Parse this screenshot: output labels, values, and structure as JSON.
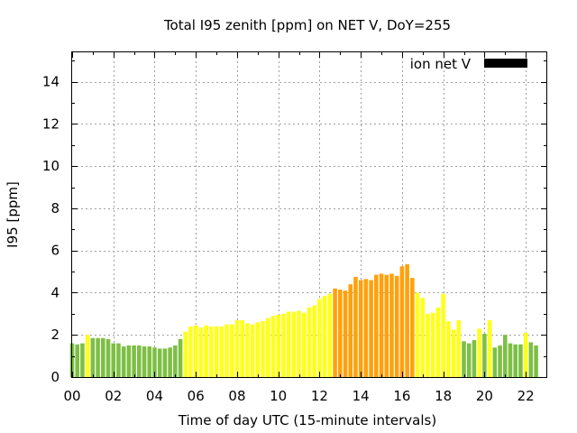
{
  "chart_data": {
    "type": "bar",
    "title": "Total I95 zenith [ppm] on NET V, DoY=255",
    "xlabel": "Time of day UTC (15-minute intervals)",
    "ylabel": "I95 [ppm]",
    "legend": {
      "label": "ion net V",
      "color": "#000000",
      "position": "top-right"
    },
    "xlim": [
      0,
      23
    ],
    "ylim": [
      0,
      15.4
    ],
    "grid": true,
    "x_tick_labels": [
      "00",
      "02",
      "04",
      "06",
      "08",
      "10",
      "12",
      "14",
      "16",
      "18",
      "20",
      "22"
    ],
    "y_ticks": [
      0,
      2,
      4,
      6,
      8,
      10,
      12,
      14
    ],
    "interval_hours": 0.25,
    "colors": {
      "low": "#7dbf45",
      "medium": "#ffff19",
      "high": "#ffa10c"
    },
    "values": [
      1.6,
      1.55,
      1.6,
      2.0,
      1.85,
      1.85,
      1.85,
      1.8,
      1.6,
      1.6,
      1.45,
      1.5,
      1.5,
      1.5,
      1.45,
      1.45,
      1.4,
      1.35,
      1.35,
      1.4,
      1.5,
      1.8,
      2.15,
      2.4,
      2.45,
      2.35,
      2.45,
      2.4,
      2.4,
      2.4,
      2.5,
      2.5,
      2.7,
      2.7,
      2.55,
      2.5,
      2.6,
      2.65,
      2.8,
      2.9,
      2.95,
      3.0,
      3.1,
      3.1,
      3.15,
      3.05,
      3.3,
      3.4,
      3.7,
      3.85,
      3.95,
      4.2,
      4.15,
      4.1,
      4.4,
      4.75,
      4.6,
      4.65,
      4.6,
      4.85,
      4.9,
      4.85,
      4.9,
      4.8,
      5.25,
      5.35,
      4.7,
      4.0,
      3.75,
      3.0,
      3.05,
      3.3,
      3.95,
      2.65,
      2.25,
      2.7,
      1.7,
      1.6,
      1.75,
      2.3,
      2.05,
      2.7,
      1.4,
      1.5,
      2.0,
      1.6,
      1.55,
      1.55,
      2.1,
      1.65,
      1.5
    ],
    "levels": [
      "low",
      "low",
      "low",
      "medium",
      "low",
      "low",
      "low",
      "low",
      "low",
      "low",
      "low",
      "low",
      "low",
      "low",
      "low",
      "low",
      "low",
      "low",
      "low",
      "low",
      "low",
      "low",
      "medium",
      "medium",
      "medium",
      "medium",
      "medium",
      "medium",
      "medium",
      "medium",
      "medium",
      "medium",
      "medium",
      "medium",
      "medium",
      "medium",
      "medium",
      "medium",
      "medium",
      "medium",
      "medium",
      "medium",
      "medium",
      "medium",
      "medium",
      "medium",
      "medium",
      "medium",
      "medium",
      "medium",
      "medium",
      "high",
      "high",
      "high",
      "high",
      "high",
      "high",
      "high",
      "high",
      "high",
      "high",
      "high",
      "high",
      "high",
      "high",
      "high",
      "high",
      "medium",
      "medium",
      "medium",
      "medium",
      "medium",
      "medium",
      "medium",
      "medium",
      "medium",
      "low",
      "low",
      "low",
      "medium",
      "low",
      "medium",
      "low",
      "low",
      "low",
      "low",
      "low",
      "low",
      "medium",
      "low",
      "low"
    ]
  }
}
